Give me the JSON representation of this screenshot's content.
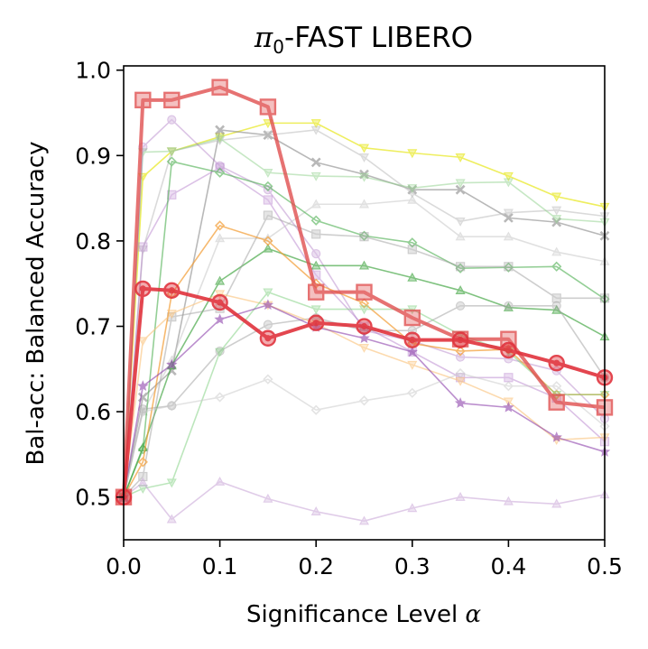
{
  "chart_data": {
    "type": "line",
    "title_symbol": "π",
    "title_sub": "0",
    "title_rest": "-FAST LIBERO",
    "xlabel_text": "Significance Level ",
    "xlabel_symbol": "α",
    "ylabel": "Bal-acc: Balanced Accuracy",
    "xlim": [
      0.0,
      0.5
    ],
    "ylim": [
      0.45,
      1.005
    ],
    "xticks": [
      0.0,
      0.1,
      0.2,
      0.3,
      0.4,
      0.5
    ],
    "xtick_labels": [
      "0.0",
      "0.1",
      "0.2",
      "0.3",
      "0.4",
      "0.5"
    ],
    "yticks": [
      0.5,
      0.6,
      0.7,
      0.8,
      0.9,
      1.0
    ],
    "ytick_labels": [
      "0.5",
      "0.6",
      "0.7",
      "0.8",
      "0.9",
      "1.0"
    ],
    "x": [
      0.0,
      0.02,
      0.05,
      0.1,
      0.15,
      0.2,
      0.25,
      0.3,
      0.35,
      0.4,
      0.45,
      0.5
    ],
    "series": [
      {
        "name": "yellow-triangle-down",
        "color": "#e9e92a",
        "marker": "v",
        "opacity": 0.75,
        "values": [
          0.5,
          0.875,
          0.905,
          0.922,
          0.938,
          0.938,
          0.909,
          0.903,
          0.898,
          0.876,
          0.852,
          0.84
        ]
      },
      {
        "name": "gray-x",
        "color": "#8a8a8a",
        "marker": "x",
        "opacity": 0.6,
        "values": [
          0.5,
          0.617,
          0.648,
          0.93,
          0.924,
          0.892,
          0.878,
          0.86,
          0.86,
          0.827,
          0.822,
          0.806
        ]
      },
      {
        "name": "lightgray-triangle-down",
        "color": "#bdbdbd",
        "marker": "v",
        "opacity": 0.55,
        "values": [
          0.5,
          0.79,
          0.905,
          0.918,
          0.924,
          0.93,
          0.898,
          0.856,
          0.823,
          0.833,
          0.836,
          0.829
        ]
      },
      {
        "name": "lightgreen-triangle-down",
        "color": "#8fd18a",
        "marker": "v",
        "opacity": 0.5,
        "values": [
          0.5,
          0.904,
          0.905,
          0.92,
          0.88,
          0.876,
          0.875,
          0.862,
          0.868,
          0.869,
          0.826,
          0.822
        ]
      },
      {
        "name": "purple-circle-light",
        "color": "#9b59b6",
        "marker": "o",
        "opacity": 0.35,
        "values": [
          0.5,
          0.91,
          0.942,
          0.888,
          0.86,
          0.785,
          0.695,
          0.683,
          0.664,
          0.662,
          0.648,
          0.592
        ]
      },
      {
        "name": "purple-square-light",
        "color": "#b077c8",
        "marker": "s",
        "opacity": 0.45,
        "values": [
          0.5,
          0.793,
          0.854,
          0.886,
          0.848,
          0.76,
          0.7,
          0.67,
          0.64,
          0.64,
          0.616,
          0.565
        ]
      },
      {
        "name": "lightgray-triangle-up",
        "color": "#c8c8c8",
        "marker": "^",
        "opacity": 0.55,
        "values": [
          0.5,
          0.6,
          0.66,
          0.803,
          0.803,
          0.843,
          0.843,
          0.848,
          0.805,
          0.805,
          0.787,
          0.776
        ]
      },
      {
        "name": "green-diamond",
        "color": "#4caf50",
        "marker": "D",
        "opacity": 0.6,
        "values": [
          0.5,
          0.556,
          0.893,
          0.88,
          0.864,
          0.824,
          0.806,
          0.798,
          0.768,
          0.769,
          0.77,
          0.732
        ]
      },
      {
        "name": "green-triangle-up",
        "color": "#3ca33c",
        "marker": "^",
        "opacity": 0.65,
        "values": [
          0.5,
          0.558,
          0.654,
          0.753,
          0.791,
          0.771,
          0.771,
          0.757,
          0.742,
          0.722,
          0.719,
          0.688
        ]
      },
      {
        "name": "gray-square",
        "color": "#9e9e9e",
        "marker": "s",
        "opacity": 0.5,
        "values": [
          0.5,
          0.524,
          0.711,
          0.721,
          0.83,
          0.808,
          0.805,
          0.79,
          0.77,
          0.77,
          0.733,
          0.733
        ]
      },
      {
        "name": "gray-circle",
        "color": "#9e9e9e",
        "marker": "o",
        "opacity": 0.5,
        "values": [
          0.5,
          0.603,
          0.607,
          0.671,
          0.702,
          0.71,
          0.695,
          0.695,
          0.724,
          0.724,
          0.724,
          0.64
        ]
      },
      {
        "name": "orange-diamond",
        "color": "#f39c33",
        "marker": "D",
        "opacity": 0.7,
        "values": [
          0.5,
          0.541,
          0.738,
          0.818,
          0.8,
          0.75,
          0.727,
          0.68,
          0.671,
          0.673,
          0.62,
          0.62
        ]
      },
      {
        "name": "lightorange-triangle-down",
        "color": "#fbc27a",
        "marker": "v",
        "opacity": 0.6,
        "values": [
          0.5,
          0.683,
          0.715,
          0.738,
          0.725,
          0.703,
          0.675,
          0.655,
          0.636,
          0.612,
          0.567,
          0.57
        ]
      },
      {
        "name": "lightgreen-triangle-down-2",
        "color": "#7ccf7c",
        "marker": "v",
        "opacity": 0.5,
        "values": [
          0.5,
          0.51,
          0.517,
          0.67,
          0.74,
          0.72,
          0.72,
          0.72,
          0.69,
          0.67,
          0.62,
          0.62
        ]
      },
      {
        "name": "purple-star",
        "color": "#8e44ad",
        "marker": "*",
        "opacity": 0.6,
        "values": [
          0.5,
          0.63,
          0.655,
          0.708,
          0.725,
          0.699,
          0.686,
          0.67,
          0.61,
          0.605,
          0.57,
          0.553
        ]
      },
      {
        "name": "lightgray-diamond",
        "color": "#c8c8c8",
        "marker": "D",
        "opacity": 0.5,
        "values": [
          0.5,
          0.6,
          0.607,
          0.617,
          0.638,
          0.602,
          0.613,
          0.622,
          0.645,
          0.63,
          0.63,
          0.583
        ]
      },
      {
        "name": "lavender-triangle-up",
        "color": "#c7a3d6",
        "marker": "^",
        "opacity": 0.55,
        "values": [
          0.5,
          0.517,
          0.474,
          0.518,
          0.498,
          0.483,
          0.472,
          0.487,
          0.5,
          0.495,
          0.492,
          0.503
        ]
      },
      {
        "name": "red-square-bold",
        "color": "#e05050",
        "marker": "s",
        "opacity": 0.8,
        "values": [
          0.5,
          0.965,
          0.965,
          0.98,
          0.957,
          0.74,
          0.74,
          0.71,
          0.685,
          0.685,
          0.611,
          0.605
        ]
      },
      {
        "name": "red-circle-bold",
        "color": "#e0323c",
        "marker": "o",
        "opacity": 0.9,
        "values": [
          0.5,
          0.744,
          0.742,
          0.728,
          0.686,
          0.704,
          0.7,
          0.684,
          0.684,
          0.672,
          0.657,
          0.64
        ]
      }
    ]
  }
}
